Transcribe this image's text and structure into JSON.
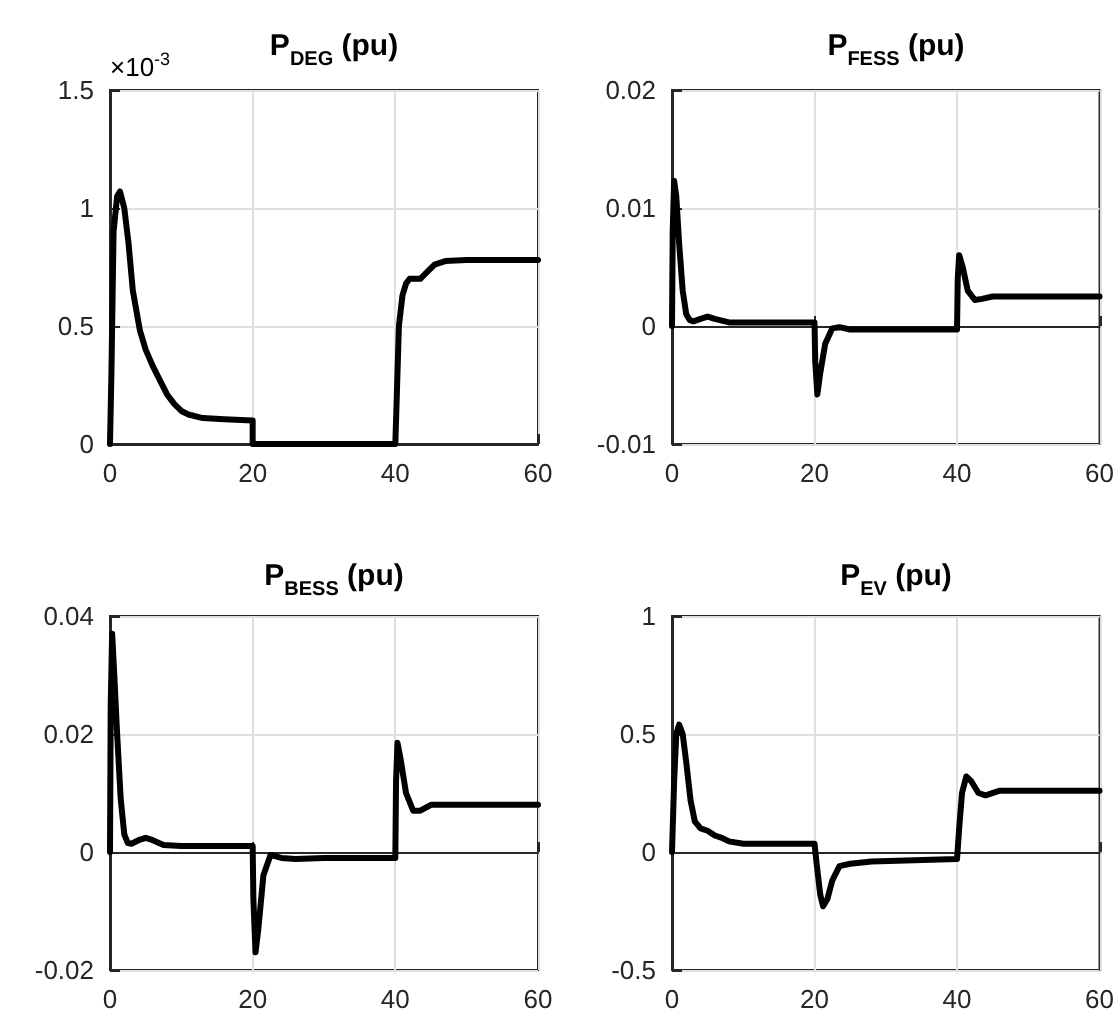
{
  "chart_data": [
    {
      "type": "line",
      "title": "P$_{DEG}$ (pu)",
      "annotations": [
        "×10$^{-3}$"
      ],
      "xlim": [
        0,
        60
      ],
      "xticks": [
        0,
        20,
        40,
        60
      ],
      "ylim": [
        0,
        1.5
      ],
      "yticks": [
        0,
        0.5,
        1,
        1.5
      ],
      "grid": true,
      "line_style": "solid",
      "series": [
        {
          "color": "#000000",
          "x": [
            0,
            0.2,
            0.5,
            1,
            1.4,
            2,
            2.6,
            3.2,
            4.2,
            5,
            6,
            7,
            8,
            9,
            10,
            11,
            13,
            16,
            20,
            20,
            40,
            40.2,
            40.5,
            41,
            41.5,
            42,
            43.5,
            44.5,
            45.5,
            47,
            50,
            60
          ],
          "values": [
            0,
            0.3,
            0.9,
            1.05,
            1.07,
            1,
            0.85,
            0.65,
            0.48,
            0.4,
            0.33,
            0.27,
            0.21,
            0.17,
            0.14,
            0.125,
            0.11,
            0.105,
            0.1,
            0,
            0,
            0.2,
            0.5,
            0.63,
            0.68,
            0.7,
            0.7,
            0.73,
            0.76,
            0.775,
            0.78,
            0.78
          ]
        }
      ]
    },
    {
      "type": "line",
      "title": "P$_{FESS}$ (pu)",
      "xlim": [
        0,
        60
      ],
      "xticks": [
        0,
        20,
        40,
        60
      ],
      "ylim": [
        -0.01,
        0.02
      ],
      "yticks": [
        -0.01,
        0,
        0.01,
        0.02
      ],
      "grid": true,
      "line_style": "solid",
      "series": [
        {
          "color": "#000000",
          "x": [
            0,
            0.1,
            0.3,
            0.6,
            1,
            1.5,
            2,
            2.5,
            3,
            4,
            5,
            6,
            8,
            20,
            20.1,
            20.4,
            20.8,
            21.5,
            22.5,
            23.5,
            25,
            30,
            40,
            40.1,
            40.3,
            40.8,
            41.5,
            42.5,
            43.5,
            45,
            48,
            60
          ],
          "values": [
            0,
            0.008,
            0.0123,
            0.011,
            0.007,
            0.003,
            0.001,
            0.0005,
            0.0004,
            0.0006,
            0.0008,
            0.0006,
            0.0003,
            0.0003,
            -0.003,
            -0.0058,
            -0.004,
            -0.0015,
            -0.0002,
            -0.0001,
            -0.0003,
            -0.0003,
            -0.0003,
            0.004,
            0.006,
            0.005,
            0.003,
            0.0022,
            0.0023,
            0.0025,
            0.0025,
            0.0025
          ]
        }
      ]
    },
    {
      "type": "line",
      "title": "P$_{BESS}$ (pu)",
      "xlim": [
        0,
        60
      ],
      "xticks": [
        0,
        20,
        40,
        60
      ],
      "ylim": [
        -0.02,
        0.04
      ],
      "yticks": [
        -0.02,
        0,
        0.02,
        0.04
      ],
      "grid": true,
      "line_style": "solid",
      "series": [
        {
          "color": "#000000",
          "x": [
            0,
            0.1,
            0.3,
            0.6,
            1,
            1.5,
            2,
            2.5,
            3,
            4,
            5,
            6,
            7.5,
            10,
            20,
            20.1,
            20.4,
            20.8,
            21.5,
            22.5,
            24,
            26,
            30,
            40,
            40.1,
            40.3,
            40.7,
            41.5,
            42.5,
            43.5,
            45,
            48,
            60
          ],
          "values": [
            0,
            0.025,
            0.037,
            0.03,
            0.02,
            0.009,
            0.003,
            0.0015,
            0.0014,
            0.002,
            0.0024,
            0.002,
            0.0012,
            0.001,
            0.001,
            -0.008,
            -0.017,
            -0.013,
            -0.004,
            -0.0005,
            -0.001,
            -0.0012,
            -0.001,
            -0.001,
            0.012,
            0.0185,
            0.016,
            0.01,
            0.007,
            0.007,
            0.008,
            0.008,
            0.008
          ]
        }
      ]
    },
    {
      "type": "line",
      "title": "P$_{EV}$ (pu)",
      "xlim": [
        0,
        60
      ],
      "xticks": [
        0,
        20,
        40,
        60
      ],
      "ylim": [
        -0.5,
        1
      ],
      "yticks": [
        -0.5,
        0,
        0.5,
        1
      ],
      "grid": true,
      "line_style": "solid",
      "series": [
        {
          "color": "#000000",
          "x": [
            0,
            0.3,
            0.6,
            1,
            1.5,
            2,
            2.6,
            3.2,
            4,
            5,
            6,
            7,
            8,
            10,
            20,
            20.3,
            20.8,
            21.2,
            21.8,
            22.5,
            23.5,
            25,
            28,
            40,
            40.3,
            40.7,
            41.3,
            42,
            43,
            44,
            46,
            60
          ],
          "values": [
            0,
            0.3,
            0.5,
            0.54,
            0.5,
            0.38,
            0.22,
            0.13,
            0.1,
            0.09,
            0.07,
            0.06,
            0.045,
            0.035,
            0.035,
            -0.05,
            -0.18,
            -0.23,
            -0.2,
            -0.12,
            -0.06,
            -0.05,
            -0.04,
            -0.03,
            0.1,
            0.25,
            0.32,
            0.3,
            0.25,
            0.24,
            0.26,
            0.26
          ]
        }
      ]
    }
  ]
}
